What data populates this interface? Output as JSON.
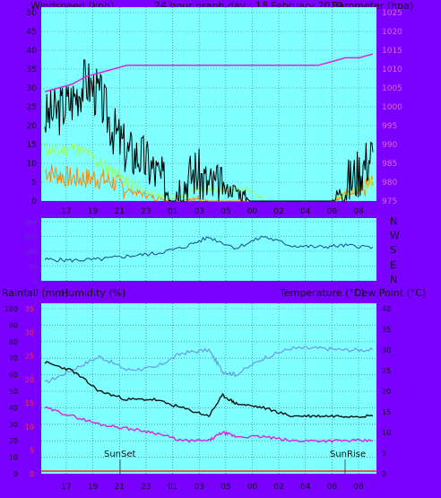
{
  "header": {
    "windspeed": "Windspeed (kph)",
    "title": "24 hour graph day : 18 February 2019",
    "barometer": "Barometer (hpa)"
  },
  "lower_header": {
    "rainfall": "Rainfall (mm)",
    "humidity": "Humidity (%)",
    "temperature": "Temperature (°C)",
    "dewpoint": "Dew Point (°C)"
  },
  "compass": [
    "N",
    "W",
    "S",
    "E",
    "N"
  ],
  "markers": {
    "sunset": "SunSet",
    "sunrise": "SunRise"
  },
  "colors": {
    "plot_bg": "#7fffff",
    "frame_bg": "#7a00ff",
    "wind": "#000000",
    "gust_orange": "#ff8800",
    "wind_green": "#9aff66",
    "barometer": "#dd22dd",
    "direction": "#1a4a8a",
    "humidity": "#6a9adf",
    "temperature": "#111111",
    "dewpoint": "#dd22dd",
    "rain_red": "#ff2222"
  },
  "chart_data": [
    {
      "type": "line",
      "title": "24 hour graph day : 18 February 2019",
      "xlabel": "",
      "ylabel": "Windspeed (kph)",
      "y2label": "Barometer (hpa)",
      "x_ticks": [
        "17",
        "19",
        "21",
        "23",
        "01",
        "03",
        "05",
        "00",
        "02",
        "04",
        "06",
        "08"
      ],
      "y_ticks": [
        0,
        5,
        10,
        15,
        20,
        25,
        30,
        35,
        40,
        45,
        50
      ],
      "y2_ticks": [
        975,
        980,
        985,
        990,
        995,
        1000,
        1005,
        1010,
        1015,
        1020,
        1025
      ],
      "ylim": [
        0,
        50
      ],
      "y2lim": [
        975,
        1025
      ],
      "series": [
        {
          "name": "Windspeed",
          "x": [
            0,
            1,
            2,
            3,
            4,
            5,
            6,
            7,
            8,
            9,
            10,
            11,
            12,
            13,
            14,
            15,
            16,
            17,
            18,
            19,
            20,
            21,
            22,
            23,
            24
          ],
          "values": [
            22,
            24,
            27,
            32,
            28,
            19,
            13,
            12,
            8,
            3,
            4,
            8,
            4,
            3,
            3,
            0,
            0,
            0,
            0,
            0,
            0,
            0,
            4,
            8,
            13
          ]
        },
        {
          "name": "Average",
          "x": [
            0,
            1,
            2,
            3,
            4,
            5,
            6,
            7,
            8,
            9,
            10,
            11,
            12,
            13,
            14,
            15,
            16,
            17,
            18,
            19,
            20,
            21,
            22,
            23,
            24
          ],
          "values": [
            14,
            13,
            14,
            13,
            10,
            8,
            5,
            3,
            2,
            1,
            1,
            3,
            3,
            3,
            3,
            3,
            0,
            0,
            0,
            0,
            0,
            0,
            2,
            3,
            5
          ]
        },
        {
          "name": "Gust",
          "x": [
            0,
            1,
            2,
            3,
            4,
            5,
            6,
            7,
            8,
            9,
            10,
            11,
            12,
            13,
            14,
            15,
            16,
            17,
            18,
            19,
            20,
            21,
            22,
            23,
            24
          ],
          "values": [
            8,
            7,
            6,
            6,
            6,
            5,
            3,
            2,
            1,
            0,
            0,
            1,
            0,
            0,
            0,
            0,
            0,
            0,
            0,
            0,
            0,
            0,
            2,
            3,
            4
          ]
        },
        {
          "name": "Barometer",
          "x": [
            0,
            1,
            2,
            3,
            4,
            5,
            6,
            7,
            8,
            9,
            10,
            11,
            12,
            13,
            14,
            15,
            16,
            17,
            18,
            19,
            20,
            21,
            22,
            23,
            24
          ],
          "values": [
            1004,
            1005,
            1006,
            1008,
            1009,
            1010,
            1011,
            1011,
            1011,
            1011,
            1011,
            1011,
            1011,
            1011,
            1011,
            1011,
            1011,
            1011,
            1011,
            1011,
            1011,
            1012,
            1013,
            1013,
            1014
          ]
        }
      ]
    },
    {
      "type": "line",
      "ylabel": "Wind direction",
      "y_ticks": [
        0,
        90,
        180,
        270,
        360
      ],
      "ylim": [
        0,
        360
      ],
      "series": [
        {
          "name": "Direction",
          "x": [
            0,
            2,
            4,
            6,
            8,
            10,
            12,
            14,
            16,
            18,
            20,
            22,
            24
          ],
          "values": [
            130,
            125,
            130,
            150,
            165,
            200,
            265,
            200,
            270,
            215,
            205,
            215,
            205
          ]
        }
      ]
    },
    {
      "type": "line",
      "ylabel": "Humidity (%)",
      "y2label": "Temperature (°C)",
      "y_ticks": [
        0,
        10,
        20,
        30,
        40,
        50,
        60,
        70,
        80,
        90,
        100
      ],
      "rain_ticks": [
        0,
        5,
        10,
        15,
        20,
        25,
        30,
        35
      ],
      "y2_ticks": [
        0,
        5,
        10,
        15,
        20,
        25,
        30,
        35,
        40
      ],
      "ylim": [
        0,
        100
      ],
      "y2lim": [
        0,
        40
      ],
      "series": [
        {
          "name": "Humidity",
          "x": [
            0,
            2,
            4,
            6,
            8,
            10,
            12,
            13,
            14,
            16,
            18,
            20,
            22,
            24
          ],
          "values": [
            55,
            63,
            71,
            63,
            64,
            73,
            75,
            62,
            60,
            70,
            76,
            76,
            75,
            75
          ]
        },
        {
          "name": "Temperature",
          "x": [
            0,
            2,
            4,
            6,
            8,
            10,
            12,
            13,
            14,
            16,
            18,
            20,
            22,
            24
          ],
          "values": [
            27,
            25,
            20,
            18,
            18,
            16,
            14,
            19,
            17,
            16,
            14,
            14,
            14,
            14
          ]
        },
        {
          "name": "Dew Point",
          "x": [
            0,
            2,
            4,
            6,
            8,
            10,
            12,
            13,
            14,
            16,
            18,
            20,
            22,
            24
          ],
          "values": [
            16,
            14,
            12,
            11,
            10,
            8,
            8,
            10,
            9,
            9,
            8,
            8,
            8,
            8
          ]
        },
        {
          "name": "Rainfall",
          "x": [
            0,
            24
          ],
          "values": [
            0,
            0
          ]
        }
      ],
      "annotations": [
        "SunSet",
        "SunRise"
      ]
    }
  ]
}
